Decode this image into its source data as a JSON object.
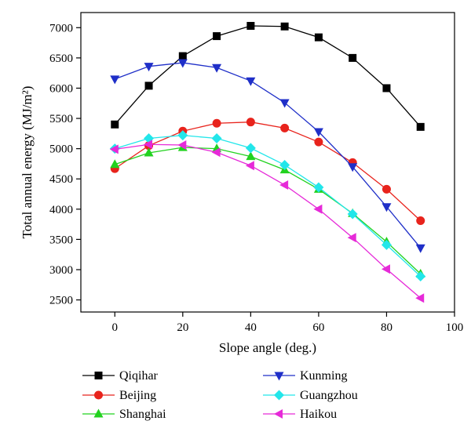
{
  "chart_data": {
    "type": "line",
    "title": "",
    "xlabel": "Slope angle (deg.)",
    "ylabel": "Total annual energy (MJ/m²)",
    "xlim": [
      -10,
      100
    ],
    "ylim": [
      2300,
      7250
    ],
    "x_ticks": [
      0,
      20,
      40,
      60,
      80,
      100
    ],
    "y_ticks": [
      2500,
      3000,
      3500,
      4000,
      4500,
      5000,
      5500,
      6000,
      6500,
      7000
    ],
    "grid": false,
    "legend_position": "bottom",
    "x": [
      0,
      10,
      20,
      30,
      40,
      50,
      60,
      70,
      80,
      90
    ],
    "series": [
      {
        "name": "Qiqihar",
        "color": "#000000",
        "marker": "square",
        "values": [
          5400,
          6040,
          6530,
          6860,
          7030,
          7020,
          6840,
          6500,
          6000,
          5360
        ]
      },
      {
        "name": "Beijing",
        "color": "#e8231c",
        "marker": "circle",
        "values": [
          4670,
          5050,
          5290,
          5420,
          5440,
          5340,
          5110,
          4770,
          4330,
          3810
        ]
      },
      {
        "name": "Shanghai",
        "color": "#22d21f",
        "marker": "triangle-up",
        "values": [
          4740,
          4930,
          5020,
          5000,
          4870,
          4650,
          4330,
          3930,
          3460,
          2930
        ]
      },
      {
        "name": "Kunming",
        "color": "#1f2fc8",
        "marker": "triangle-down",
        "values": [
          6150,
          6360,
          6420,
          6340,
          6120,
          5760,
          5280,
          4700,
          4040,
          3360
        ]
      },
      {
        "name": "Guangzhou",
        "color": "#22e6ea",
        "marker": "diamond",
        "values": [
          5000,
          5170,
          5220,
          5170,
          5010,
          4730,
          4360,
          3920,
          3410,
          2890
        ]
      },
      {
        "name": "Haikou",
        "color": "#e62ad8",
        "marker": "triangle-left",
        "values": [
          4990,
          5070,
          5060,
          4940,
          4720,
          4400,
          4000,
          3530,
          3010,
          2530
        ]
      }
    ]
  }
}
